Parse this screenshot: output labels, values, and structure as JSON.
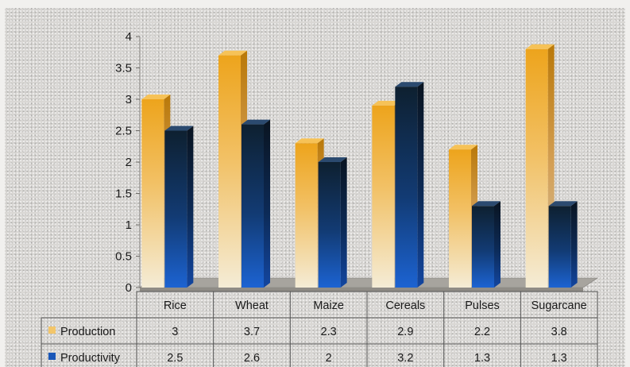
{
  "chart_data": {
    "type": "bar",
    "categories": [
      "Rice",
      "Wheat",
      "Maize",
      "Cereals",
      "Pulses",
      "Sugarcane"
    ],
    "series": [
      {
        "name": "Production",
        "values": [
          3,
          3.7,
          2.3,
          2.9,
          2.2,
          3.8
        ],
        "color": "#e9a11a"
      },
      {
        "name": "Productivity",
        "values": [
          2.5,
          2.6,
          2,
          3.2,
          1.3,
          1.3
        ],
        "color": "#1a5fc4"
      }
    ],
    "y_ticks": [
      "0",
      "0.5",
      "1",
      "1.5",
      "2",
      "2.5",
      "3",
      "3.5",
      "4"
    ],
    "table_values": [
      [
        "3",
        "3.7",
        "2.3",
        "2.9",
        "2.2",
        "3.8"
      ],
      [
        "2.5",
        "2.6",
        "2",
        "3.2",
        "1.3",
        "1.3"
      ]
    ],
    "ylim": [
      0,
      4
    ],
    "grid": false,
    "legend": "data-table"
  }
}
